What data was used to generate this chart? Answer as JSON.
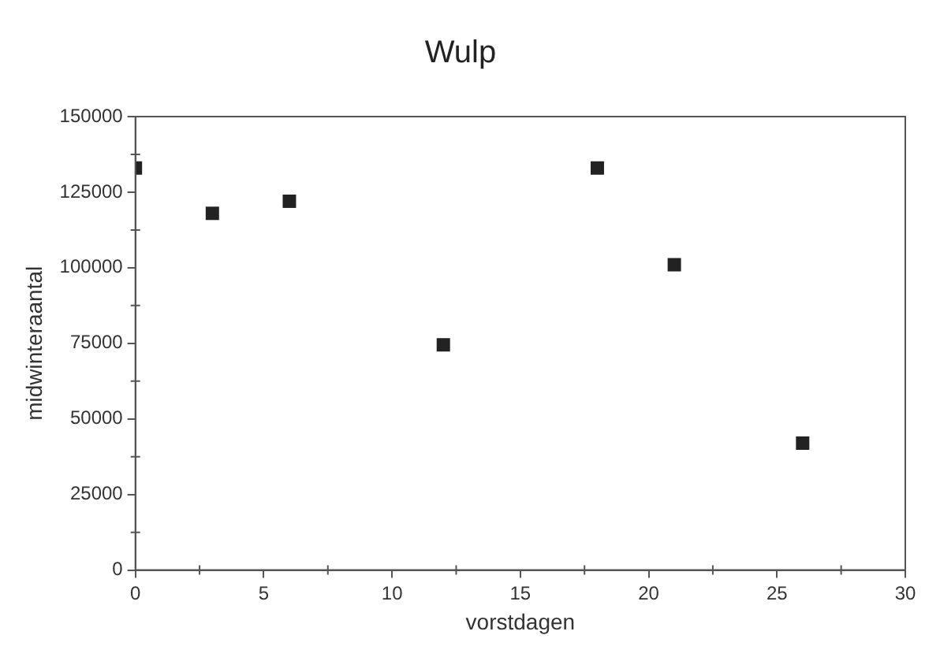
{
  "chart_data": {
    "type": "scatter",
    "title": "Wulp",
    "xlabel": "vorstdagen",
    "ylabel": "midwinteraantal",
    "x": [
      0,
      3,
      6,
      12,
      18,
      21,
      26
    ],
    "values": [
      133000,
      118000,
      122000,
      74500,
      133000,
      101000,
      42000
    ],
    "color": "#222222",
    "marker": "square",
    "xlim": [
      0,
      30
    ],
    "xticks": [
      0,
      5,
      10,
      15,
      20,
      25,
      30
    ],
    "ylim": [
      0,
      150000
    ],
    "yticks": [
      0,
      25000,
      50000,
      75000,
      100000,
      125000,
      150000
    ],
    "grid": false,
    "legend": false
  }
}
